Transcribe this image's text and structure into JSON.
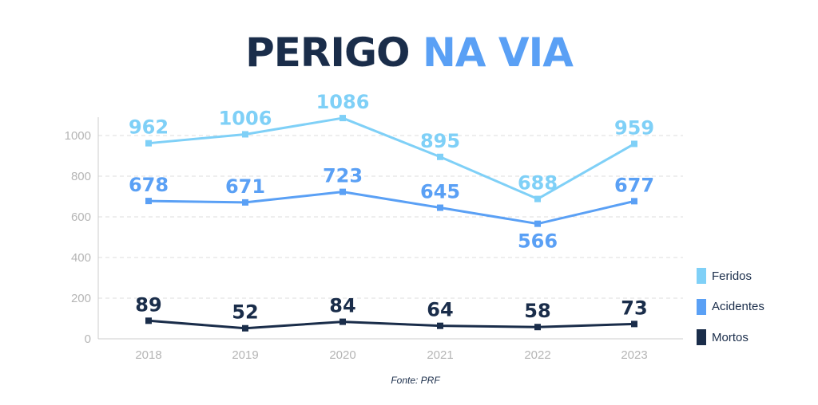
{
  "title": {
    "part1": "PERIGO",
    "part2": "NA VIA"
  },
  "source": "Fonte: PRF",
  "colors": {
    "title_dark": "#1a2d4a",
    "title_accent": "#5aa0f5"
  },
  "chart_data": {
    "type": "line",
    "title": "PERIGO NA VIA",
    "x": [
      "2018",
      "2019",
      "2020",
      "2021",
      "2022",
      "2023"
    ],
    "ylim": [
      0,
      1100
    ],
    "yticks": [
      "0",
      "200",
      "400",
      "600",
      "800",
      "1000"
    ],
    "grid": "horizontal dashed",
    "legend_position": "right",
    "series": [
      {
        "name": "Feridos",
        "color": "#7fd0f7",
        "values": [
          962,
          1006,
          1086,
          895,
          688,
          959
        ],
        "labels": [
          "962",
          "1006",
          "1086",
          "895",
          "688",
          "959"
        ]
      },
      {
        "name": "Acidentes",
        "color": "#5aa0f5",
        "values": [
          678,
          671,
          723,
          645,
          566,
          677
        ],
        "labels": [
          "678",
          "671",
          "723",
          "645",
          "566",
          "677"
        ]
      },
      {
        "name": "Mortos",
        "color": "#1a2d4a",
        "values": [
          89,
          52,
          84,
          64,
          58,
          73
        ],
        "labels": [
          "89",
          "52",
          "84",
          "64",
          "58",
          "73"
        ]
      }
    ]
  }
}
